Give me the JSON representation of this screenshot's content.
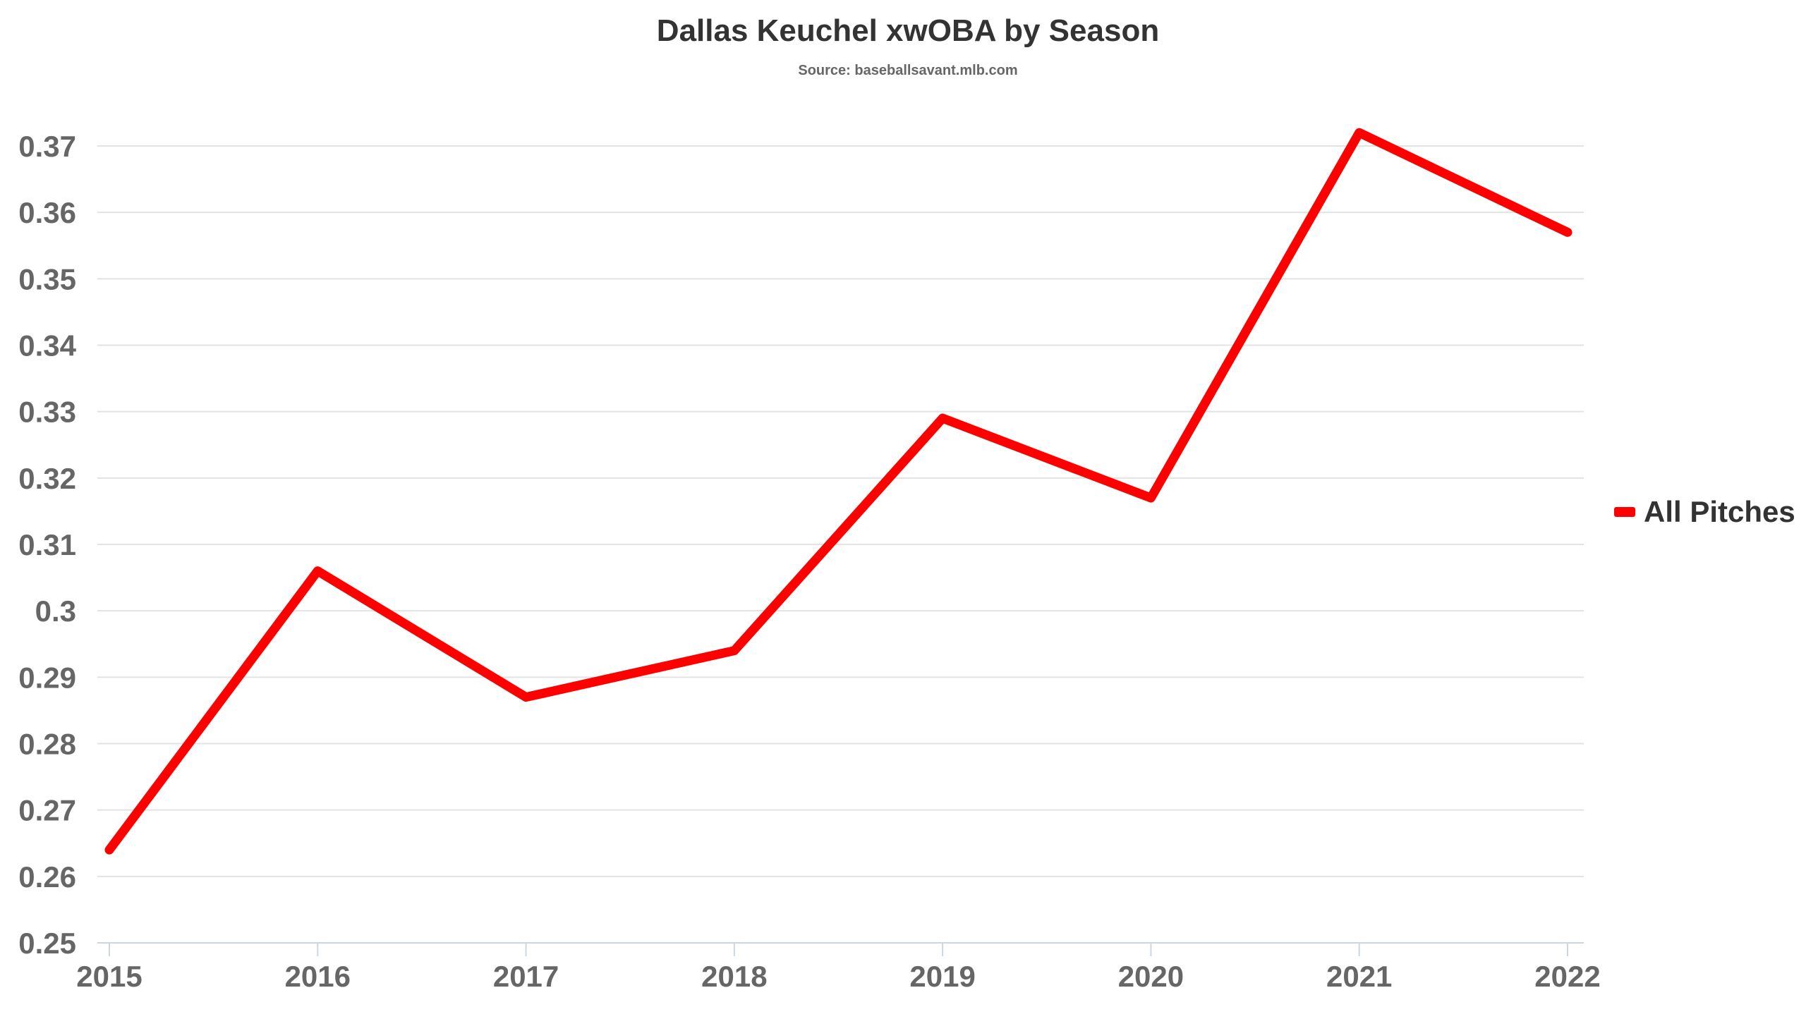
{
  "chart_data": {
    "type": "line",
    "title": "Dallas Keuchel xwOBA by Season",
    "subtitle": "Source: baseballsavant.mlb.com",
    "xlabel": "",
    "ylabel": "",
    "categories": [
      "2015",
      "2016",
      "2017",
      "2018",
      "2019",
      "2020",
      "2021",
      "2022"
    ],
    "series": [
      {
        "name": "All Pitches",
        "color": "#ff0000",
        "values": [
          0.264,
          0.306,
          0.287,
          0.294,
          0.329,
          0.317,
          0.372,
          0.357
        ]
      }
    ],
    "ylim": [
      0.25,
      0.37
    ],
    "yticks": [
      "0.25",
      "0.26",
      "0.27",
      "0.28",
      "0.29",
      "0.3",
      "0.31",
      "0.32",
      "0.33",
      "0.34",
      "0.35",
      "0.36",
      "0.37"
    ],
    "grid": true,
    "legend_position": "right"
  }
}
